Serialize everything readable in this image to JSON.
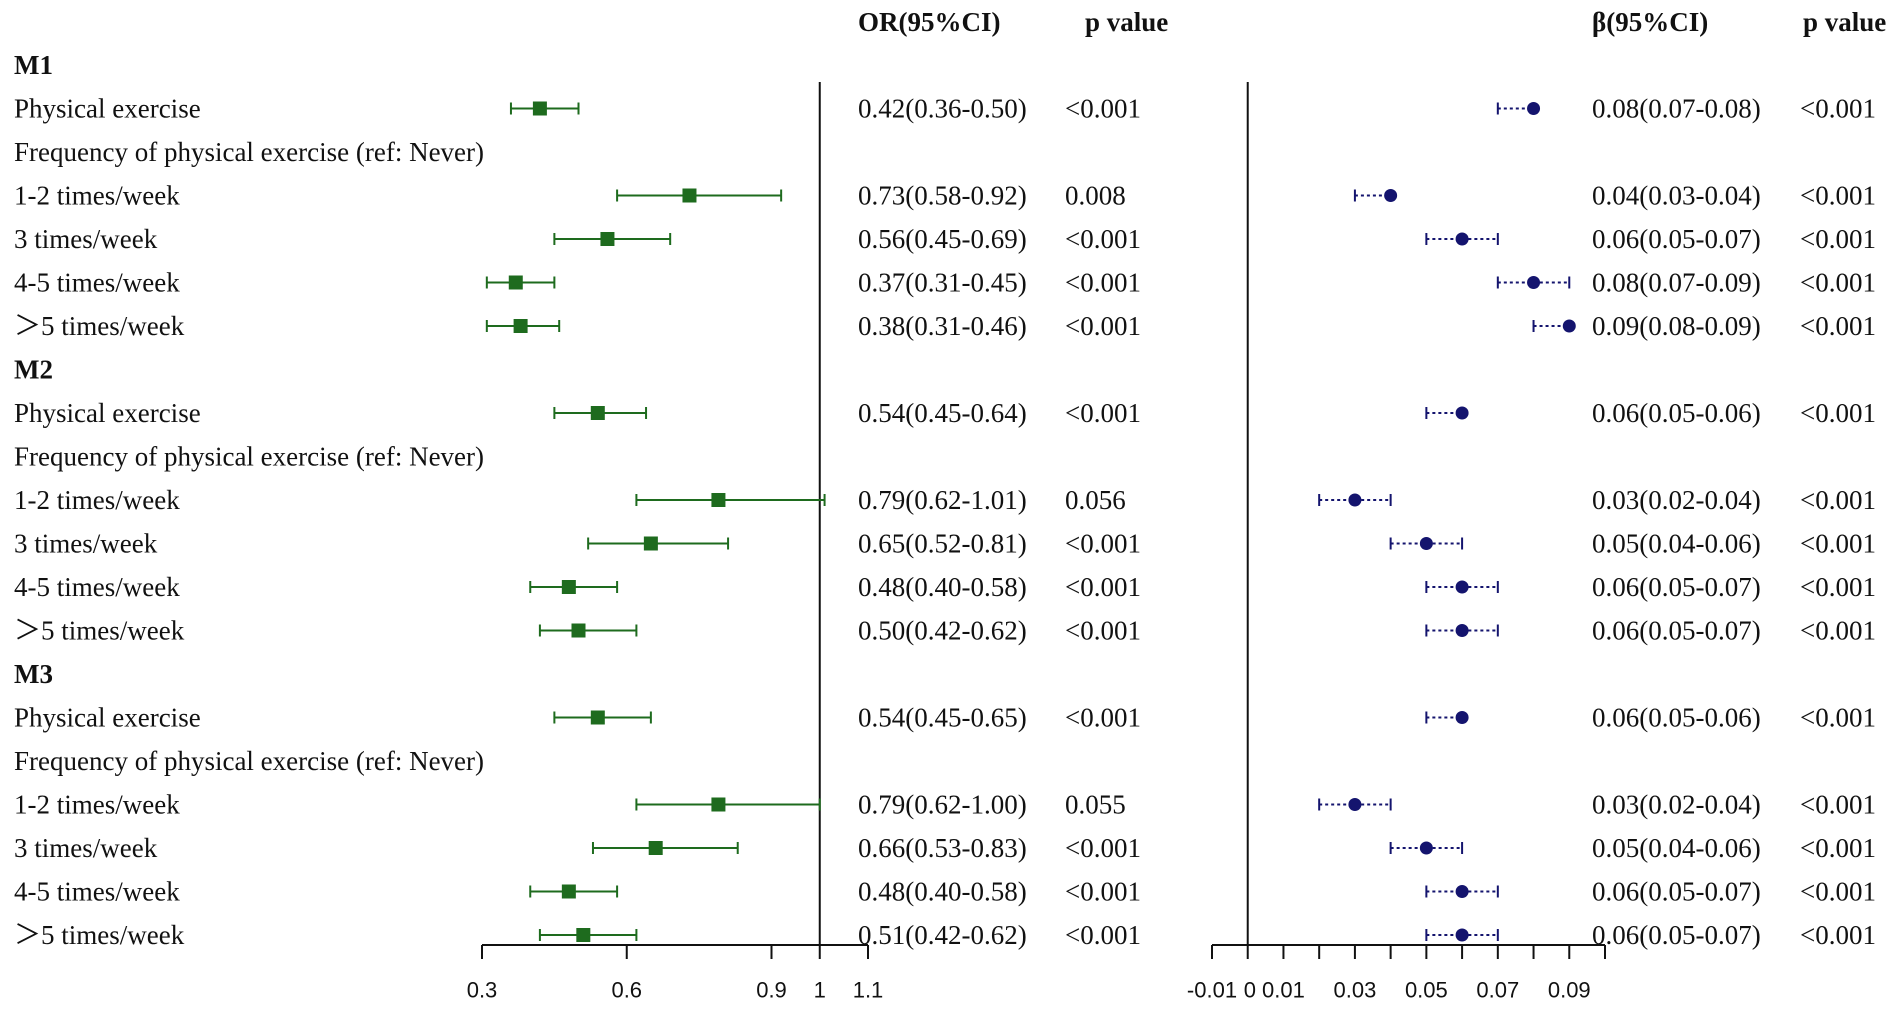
{
  "chart_data": [
    {
      "type": "forest",
      "title": "",
      "header_estimate": "OR(95%CI)",
      "header_p": "p value",
      "reference_value": 1,
      "xlim": [
        0.3,
        1.1
      ],
      "xticks": [
        0.3,
        0.6,
        0.9,
        1,
        1.1
      ],
      "xtick_labels": [
        "0.3",
        "0.6",
        "0.9",
        "1",
        "1.1"
      ],
      "marker": "square",
      "color": "#1e6b1e",
      "rows": [
        {
          "label": "M1",
          "kind": "group"
        },
        {
          "label": "Physical exercise",
          "est": 0.42,
          "lo": 0.36,
          "hi": 0.5,
          "ci_text": "0.42(0.36-0.50)",
          "p": "<0.001"
        },
        {
          "label": "Frequency of physical exercise (ref: Never)",
          "kind": "subheader"
        },
        {
          "label": "1-2 times/week",
          "est": 0.73,
          "lo": 0.58,
          "hi": 0.92,
          "ci_text": "0.73(0.58-0.92)",
          "p": "0.008"
        },
        {
          "label": "3 times/week",
          "est": 0.56,
          "lo": 0.45,
          "hi": 0.69,
          "ci_text": "0.56(0.45-0.69)",
          "p": "<0.001"
        },
        {
          "label": "4-5 times/week",
          "est": 0.37,
          "lo": 0.31,
          "hi": 0.45,
          "ci_text": "0.37(0.31-0.45)",
          "p": "<0.001"
        },
        {
          "label": ">5 times/week",
          "est": 0.38,
          "lo": 0.31,
          "hi": 0.46,
          "ci_text": "0.38(0.31-0.46)",
          "p": "<0.001"
        },
        {
          "label": "M2",
          "kind": "group"
        },
        {
          "label": "Physical exercise",
          "est": 0.54,
          "lo": 0.45,
          "hi": 0.64,
          "ci_text": "0.54(0.45-0.64)",
          "p": "<0.001"
        },
        {
          "label": "Frequency of physical exercise (ref: Never)",
          "kind": "subheader"
        },
        {
          "label": "1-2 times/week",
          "est": 0.79,
          "lo": 0.62,
          "hi": 1.01,
          "ci_text": "0.79(0.62-1.01)",
          "p": "0.056"
        },
        {
          "label": "3 times/week",
          "est": 0.65,
          "lo": 0.52,
          "hi": 0.81,
          "ci_text": "0.65(0.52-0.81)",
          "p": "<0.001"
        },
        {
          "label": "4-5 times/week",
          "est": 0.48,
          "lo": 0.4,
          "hi": 0.58,
          "ci_text": "0.48(0.40-0.58)",
          "p": "<0.001"
        },
        {
          "label": ">5 times/week",
          "est": 0.5,
          "lo": 0.42,
          "hi": 0.62,
          "ci_text": "0.50(0.42-0.62)",
          "p": "<0.001"
        },
        {
          "label": "M3",
          "kind": "group"
        },
        {
          "label": "Physical exercise",
          "est": 0.54,
          "lo": 0.45,
          "hi": 0.65,
          "ci_text": "0.54(0.45-0.65)",
          "p": "<0.001"
        },
        {
          "label": "Frequency of physical exercise (ref: Never)",
          "kind": "subheader"
        },
        {
          "label": "1-2 times/week",
          "est": 0.79,
          "lo": 0.62,
          "hi": 1.0,
          "ci_text": "0.79(0.62-1.00)",
          "p": "0.055"
        },
        {
          "label": "3 times/week",
          "est": 0.66,
          "lo": 0.53,
          "hi": 0.83,
          "ci_text": "0.66(0.53-0.83)",
          "p": "<0.001"
        },
        {
          "label": "4-5 times/week",
          "est": 0.48,
          "lo": 0.4,
          "hi": 0.58,
          "ci_text": "0.48(0.40-0.58)",
          "p": "<0.001"
        },
        {
          "label": ">5 times/week",
          "est": 0.51,
          "lo": 0.42,
          "hi": 0.62,
          "ci_text": "0.51(0.42-0.62)",
          "p": "<0.001"
        }
      ]
    },
    {
      "type": "forest",
      "title": "",
      "header_estimate": "β(95%CI)",
      "header_p": "p value",
      "reference_value": 0,
      "xlim": [
        -0.01,
        0.1
      ],
      "xticks": [
        -0.01,
        0.01,
        0.03,
        0.05,
        0.07,
        0.09
      ],
      "xtick_labels": [
        "-0.01",
        "0.01",
        "0.03",
        "0.05",
        "0.07",
        "0.09"
      ],
      "zero_label": "0",
      "marker": "circle",
      "ci_style": "dotted",
      "color": "#14146e",
      "rows": [
        {
          "label": "M1",
          "kind": "group"
        },
        {
          "label": "Physical exercise",
          "est": 0.08,
          "lo": 0.07,
          "hi": 0.08,
          "ci_text": "0.08(0.07-0.08)",
          "p": "<0.001"
        },
        {
          "label": "Frequency of physical exercise (ref: Never)",
          "kind": "subheader"
        },
        {
          "label": "1-2 times/week",
          "est": 0.04,
          "lo": 0.03,
          "hi": 0.04,
          "ci_text": "0.04(0.03-0.04)",
          "p": "<0.001"
        },
        {
          "label": "3 times/week",
          "est": 0.06,
          "lo": 0.05,
          "hi": 0.07,
          "ci_text": "0.06(0.05-0.07)",
          "p": "<0.001"
        },
        {
          "label": "4-5 times/week",
          "est": 0.08,
          "lo": 0.07,
          "hi": 0.09,
          "ci_text": "0.08(0.07-0.09)",
          "p": "<0.001"
        },
        {
          "label": ">5 times/week",
          "est": 0.09,
          "lo": 0.08,
          "hi": 0.09,
          "ci_text": "0.09(0.08-0.09)",
          "p": "<0.001"
        },
        {
          "label": "M2",
          "kind": "group"
        },
        {
          "label": "Physical exercise",
          "est": 0.06,
          "lo": 0.05,
          "hi": 0.06,
          "ci_text": "0.06(0.05-0.06)",
          "p": "<0.001"
        },
        {
          "label": "Frequency of physical exercise (ref: Never)",
          "kind": "subheader"
        },
        {
          "label": "1-2 times/week",
          "est": 0.03,
          "lo": 0.02,
          "hi": 0.04,
          "ci_text": "0.03(0.02-0.04)",
          "p": "<0.001"
        },
        {
          "label": "3 times/week",
          "est": 0.05,
          "lo": 0.04,
          "hi": 0.06,
          "ci_text": "0.05(0.04-0.06)",
          "p": "<0.001"
        },
        {
          "label": "4-5 times/week",
          "est": 0.06,
          "lo": 0.05,
          "hi": 0.07,
          "ci_text": "0.06(0.05-0.07)",
          "p": "<0.001"
        },
        {
          "label": ">5 times/week",
          "est": 0.06,
          "lo": 0.05,
          "hi": 0.07,
          "ci_text": "0.06(0.05-0.07)",
          "p": "<0.001"
        },
        {
          "label": "M3",
          "kind": "group"
        },
        {
          "label": "Physical exercise",
          "est": 0.06,
          "lo": 0.05,
          "hi": 0.06,
          "ci_text": "0.06(0.05-0.06)",
          "p": "<0.001"
        },
        {
          "label": "Frequency of physical exercise (ref: Never)",
          "kind": "subheader"
        },
        {
          "label": "1-2 times/week",
          "est": 0.03,
          "lo": 0.02,
          "hi": 0.04,
          "ci_text": "0.03(0.02-0.04)",
          "p": "<0.001"
        },
        {
          "label": "3 times/week",
          "est": 0.05,
          "lo": 0.04,
          "hi": 0.06,
          "ci_text": "0.05(0.04-0.06)",
          "p": "<0.001"
        },
        {
          "label": "4-5 times/week",
          "est": 0.06,
          "lo": 0.05,
          "hi": 0.07,
          "ci_text": "0.06(0.05-0.07)",
          "p": "<0.001"
        },
        {
          "label": ">5 times/week",
          "est": 0.06,
          "lo": 0.05,
          "hi": 0.07,
          "ci_text": "0.06(0.05-0.07)",
          "p": "<0.001"
        }
      ]
    }
  ]
}
